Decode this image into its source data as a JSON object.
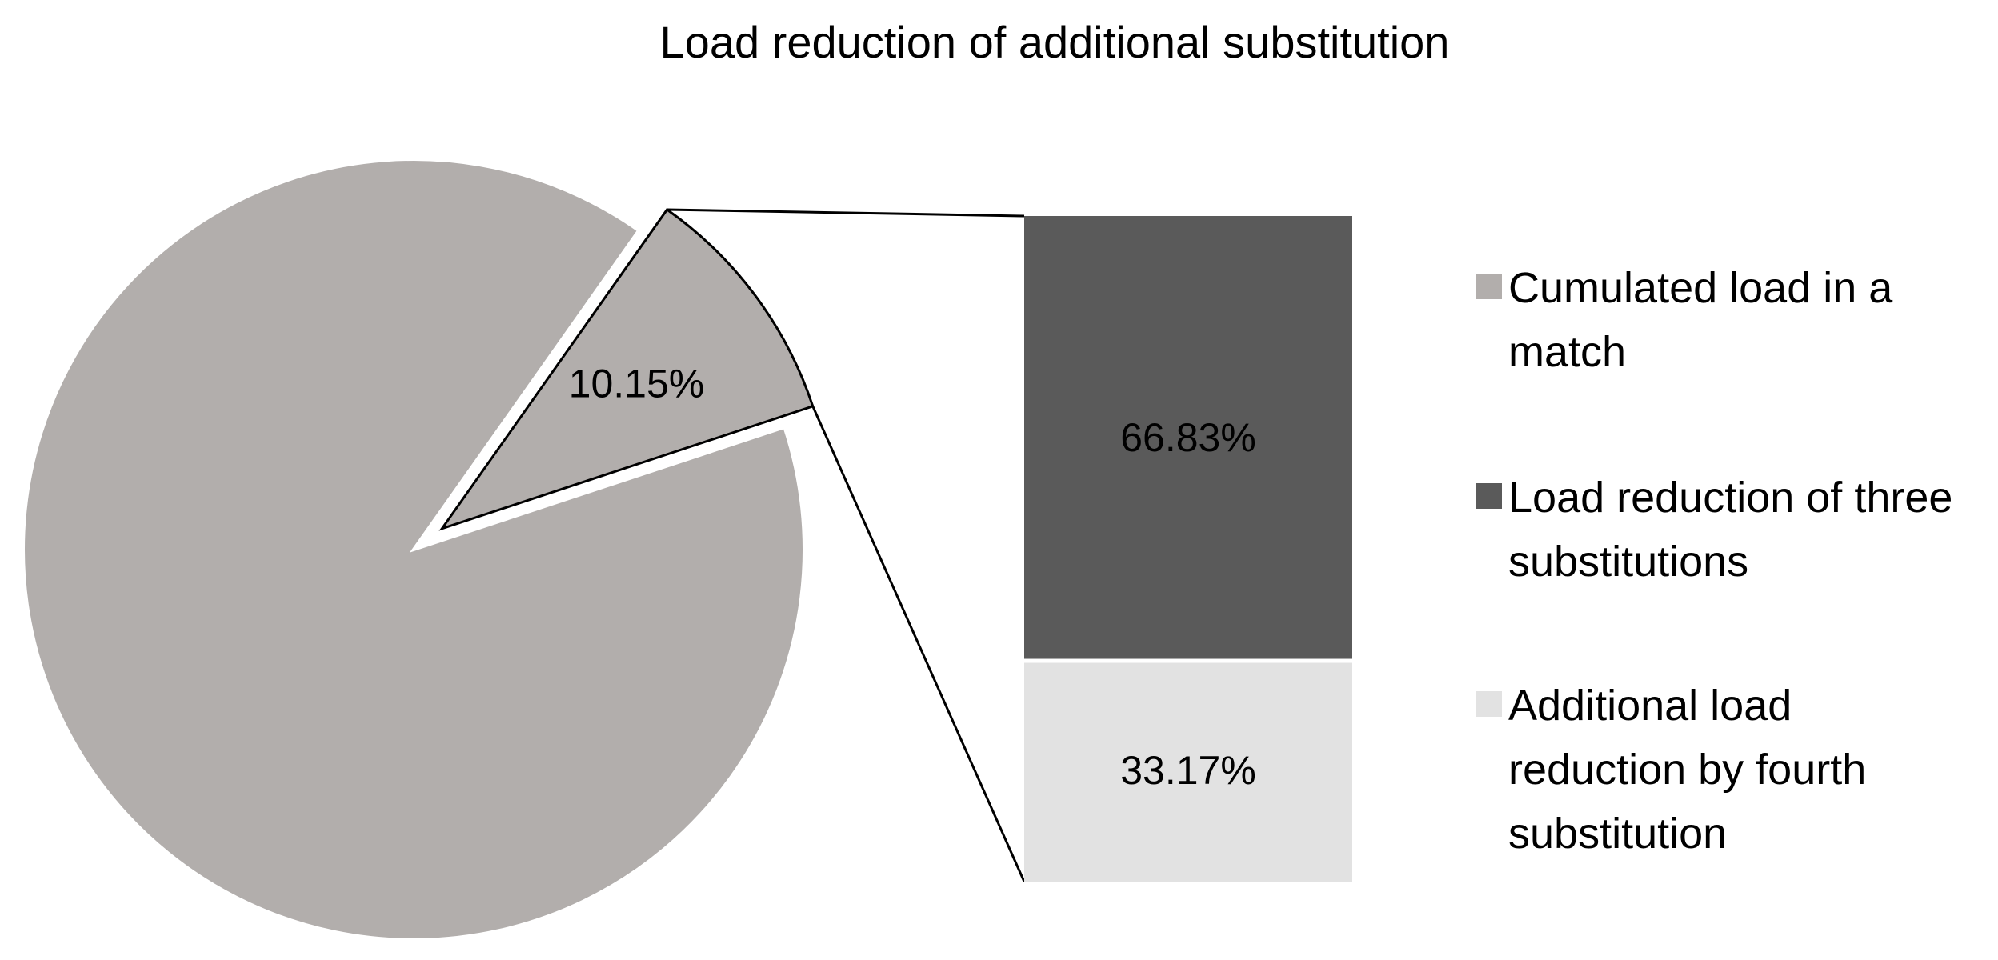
{
  "chart_data": {
    "type": "bar-of-pie",
    "title": "Load reduction of additional substitution",
    "pie": {
      "slices": [
        {
          "name": "Cumulated load in a match",
          "value": 89.85,
          "color": "#b2aeac",
          "label": ""
        },
        {
          "name": "",
          "value": 10.15,
          "color": "#b2aeac",
          "label": "10.15%",
          "exploded": true
        }
      ]
    },
    "bar": {
      "segments": [
        {
          "name": "Load reduction of three substitutions",
          "value": 66.83,
          "color": "#5a5a5a",
          "label": "66.83%"
        },
        {
          "name": "Additional load reduction by fourth substitution",
          "value": 33.17,
          "color": "#e2e2e2",
          "label": "33.17%"
        }
      ]
    },
    "legend": {
      "position": "right",
      "items": [
        {
          "lines": [
            "Cumulated load in a",
            "match"
          ],
          "color": "#b2aeac"
        },
        {
          "lines": [
            "Load reduction of three",
            "substitutions"
          ],
          "color": "#5a5a5a"
        },
        {
          "lines": [
            "Additional load",
            "reduction by fourth",
            "substitution"
          ],
          "color": "#e2e2e2"
        }
      ]
    }
  }
}
